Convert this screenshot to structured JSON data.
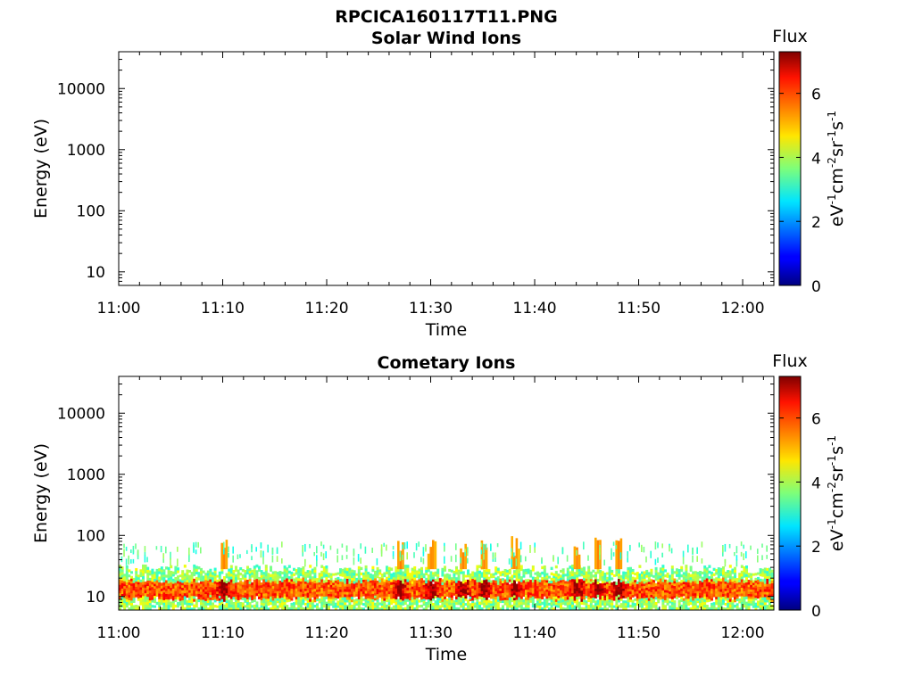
{
  "figure_title": "RPCICA160117T11.PNG",
  "chart_data": [
    {
      "type": "heatmap",
      "title": "Solar Wind Ions",
      "xlabel": "Time",
      "ylabel": "Energy (eV)",
      "x_ticks": [
        "11:00",
        "11:10",
        "11:20",
        "11:30",
        "11:40",
        "11:50",
        "12:00"
      ],
      "x_range": [
        "11:00",
        "12:03"
      ],
      "y_scale": "log",
      "y_ticks": [
        "10",
        "100",
        "1000",
        "10000"
      ],
      "y_range": [
        6,
        40000
      ],
      "colorbar": {
        "title": "Flux",
        "label": "eV-1cm-2sr-1s-1",
        "label_base": [
          "eV",
          "cm",
          "sr",
          "s"
        ],
        "label_exp": [
          "-1",
          "-2",
          "-1",
          "-1"
        ],
        "ticks": [
          "0",
          "2",
          "4",
          "6"
        ],
        "range": [
          0,
          7.3
        ]
      },
      "data_present": false
    },
    {
      "type": "heatmap",
      "title": "Cometary Ions",
      "xlabel": "Time",
      "ylabel": "Energy (eV)",
      "x_ticks": [
        "11:00",
        "11:10",
        "11:20",
        "11:30",
        "11:40",
        "11:50",
        "12:00"
      ],
      "x_range": [
        "11:00",
        "12:03"
      ],
      "y_scale": "log",
      "y_ticks": [
        "10",
        "100",
        "1000",
        "10000"
      ],
      "y_range": [
        6,
        40000
      ],
      "colorbar": {
        "title": "Flux",
        "label": "eV-1cm-2sr-1s-1",
        "label_base": [
          "eV",
          "cm",
          "sr",
          "s"
        ],
        "label_exp": [
          "-1",
          "-2",
          "-1",
          "-1"
        ],
        "ticks": [
          "0",
          "2",
          "4",
          "6"
        ],
        "range": [
          0,
          7.3
        ]
      },
      "data_present": true,
      "band_energy_ev": {
        "core": [
          9,
          18
        ],
        "halo": [
          6,
          28
        ],
        "sparse_upper": [
          40,
          80
        ]
      },
      "band_flux": {
        "core_peak": 7.0,
        "core_typical": 5.5,
        "halo": 3.5,
        "sparse": 2.8
      },
      "intense_times": [
        "11:10",
        "11:27",
        "11:30",
        "11:33",
        "11:35",
        "11:38",
        "11:44",
        "11:46",
        "11:48"
      ]
    }
  ]
}
